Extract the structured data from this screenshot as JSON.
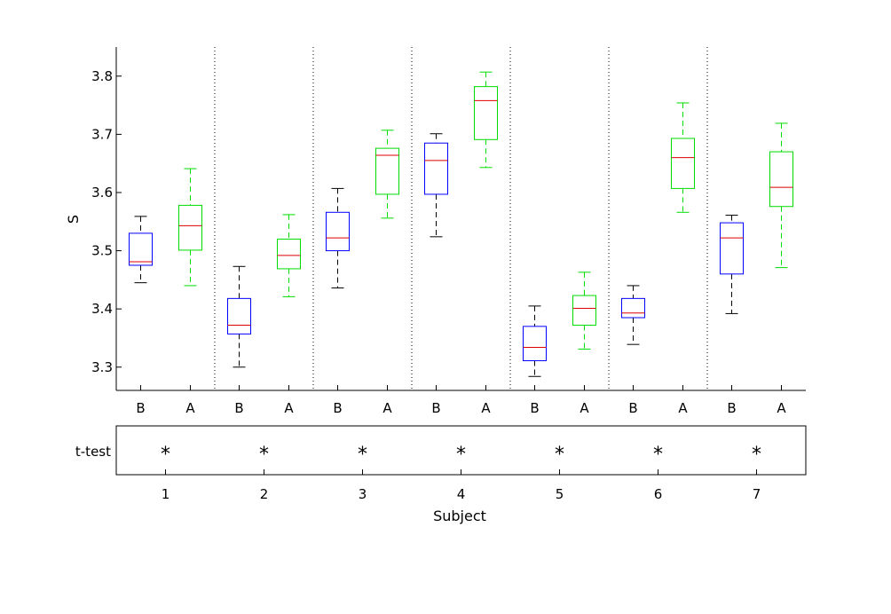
{
  "chart_data": {
    "type": "boxplot",
    "title": "",
    "ylabel": "S",
    "xlabel": "Subject",
    "ylim": [
      3.26,
      3.85
    ],
    "yticks": [
      3.3,
      3.4,
      3.5,
      3.6,
      3.7,
      3.8
    ],
    "ytick_labels": [
      "3.3",
      "3.4",
      "3.5",
      "3.6",
      "3.7",
      "3.8"
    ],
    "condition_labels": [
      "B",
      "A"
    ],
    "colors": {
      "B": "#0000ff",
      "A": "#00dd00",
      "median": "#dd0000",
      "whisker_B": "#000000"
    },
    "subjects": [
      {
        "label": "1",
        "ttest": "*",
        "B": {
          "min": 3.445,
          "q1": 3.475,
          "median": 3.481,
          "q3": 3.53,
          "max": 3.559
        },
        "A": {
          "min": 3.44,
          "q1": 3.501,
          "median": 3.543,
          "q3": 3.578,
          "max": 3.641
        }
      },
      {
        "label": "2",
        "ttest": "*",
        "B": {
          "min": 3.3,
          "q1": 3.357,
          "median": 3.372,
          "q3": 3.418,
          "max": 3.473
        },
        "A": {
          "min": 3.421,
          "q1": 3.469,
          "median": 3.492,
          "q3": 3.52,
          "max": 3.562
        }
      },
      {
        "label": "3",
        "ttest": "*",
        "B": {
          "min": 3.436,
          "q1": 3.5,
          "median": 3.522,
          "q3": 3.566,
          "max": 3.607
        },
        "A": {
          "min": 3.556,
          "q1": 3.597,
          "median": 3.664,
          "q3": 3.676,
          "max": 3.707
        }
      },
      {
        "label": "4",
        "ttest": "*",
        "B": {
          "min": 3.524,
          "q1": 3.597,
          "median": 3.655,
          "q3": 3.685,
          "max": 3.701
        },
        "A": {
          "min": 3.643,
          "q1": 3.691,
          "median": 3.758,
          "q3": 3.782,
          "max": 3.807
        }
      },
      {
        "label": "5",
        "ttest": "*",
        "B": {
          "min": 3.284,
          "q1": 3.311,
          "median": 3.334,
          "q3": 3.37,
          "max": 3.405
        },
        "A": {
          "min": 3.331,
          "q1": 3.372,
          "median": 3.401,
          "q3": 3.423,
          "max": 3.463
        }
      },
      {
        "label": "6",
        "ttest": "*",
        "B": {
          "min": 3.339,
          "q1": 3.385,
          "median": 3.393,
          "q3": 3.418,
          "max": 3.44
        },
        "A": {
          "min": 3.566,
          "q1": 3.607,
          "median": 3.66,
          "q3": 3.693,
          "max": 3.754
        }
      },
      {
        "label": "7",
        "ttest": "*",
        "B": {
          "min": 3.392,
          "q1": 3.46,
          "median": 3.522,
          "q3": 3.548,
          "max": 3.561
        },
        "A": {
          "min": 3.471,
          "q1": 3.576,
          "median": 3.609,
          "q3": 3.67,
          "max": 3.719
        }
      }
    ],
    "ttest_label": "t-test",
    "legend": ""
  }
}
